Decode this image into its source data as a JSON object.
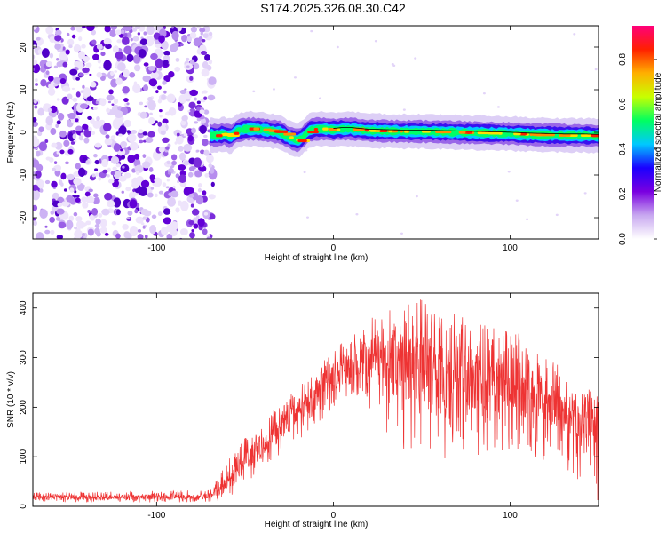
{
  "figure": {
    "title": "S174.2025.326.08.30.C42"
  },
  "chart_data": [
    {
      "type": "heatmap",
      "title": "S174.2025.326.08.30.C42",
      "xlabel": "Height of straight line (km)",
      "ylabel": "Frequency (Hz)",
      "xlim": [
        -170,
        150
      ],
      "ylim": [
        -25,
        25
      ],
      "xticks": [
        -100,
        0,
        100
      ],
      "yticks": [
        -20,
        -10,
        0,
        10,
        20
      ],
      "grid": false,
      "noise_region_x": [
        -170,
        -70
      ],
      "signal_start_x": -70,
      "signal_center_hz": [
        [
          -70,
          -0.6
        ],
        [
          -66,
          -0.8
        ],
        [
          -62,
          -0.4
        ],
        [
          -58,
          -1.0
        ],
        [
          -55,
          0.2
        ],
        [
          -50,
          0.8
        ],
        [
          -45,
          0.8
        ],
        [
          -40,
          0.6
        ],
        [
          -35,
          0.3
        ],
        [
          -30,
          0.0
        ],
        [
          -25,
          -1.2
        ],
        [
          -20,
          -2.0
        ],
        [
          -17,
          -1.0
        ],
        [
          -14,
          0.4
        ],
        [
          -10,
          0.8
        ],
        [
          -5,
          0.8
        ],
        [
          0,
          0.6
        ],
        [
          5,
          0.8
        ],
        [
          10,
          0.8
        ],
        [
          15,
          0.6
        ],
        [
          20,
          0.4
        ],
        [
          30,
          0.3
        ],
        [
          40,
          0.2
        ],
        [
          50,
          0.2
        ],
        [
          60,
          0.1
        ],
        [
          70,
          0.0
        ],
        [
          80,
          -0.1
        ],
        [
          90,
          -0.2
        ],
        [
          100,
          -0.3
        ],
        [
          110,
          -0.5
        ],
        [
          120,
          -0.6
        ],
        [
          130,
          -0.7
        ],
        [
          140,
          -0.7
        ],
        [
          150,
          -0.8
        ]
      ],
      "colorbar": {
        "label": "Normalized spectral amplitude",
        "range": [
          0.0,
          0.95
        ],
        "ticks": [
          0.0,
          0.2,
          0.4,
          0.6,
          0.8
        ],
        "tick_labels": [
          "0.0",
          "0.2",
          "0.4",
          "0.6",
          "0.8"
        ],
        "colors": [
          "#ffffff",
          "#c8a8f0",
          "#7a00e0",
          "#1a00ff",
          "#00c8ff",
          "#00ff60",
          "#c8ff00",
          "#ffb000",
          "#ff2000",
          "#ff007a"
        ]
      }
    },
    {
      "type": "line",
      "xlabel": "Height of straight line (km)",
      "ylabel": "SNR (10 * v/v)",
      "xlim": [
        -170,
        150
      ],
      "ylim": [
        0,
        430
      ],
      "xticks": [
        -100,
        0,
        100
      ],
      "yticks": [
        0,
        100,
        200,
        300,
        400
      ],
      "grid": false,
      "series": [
        {
          "name": "SNR",
          "color": "#ee3333",
          "envelope_x": [
            -170,
            -130,
            -90,
            -70,
            -60,
            -50,
            -40,
            -30,
            -20,
            -10,
            0,
            10,
            20,
            30,
            40,
            50,
            60,
            70,
            80,
            90,
            100,
            110,
            120,
            130,
            140,
            150
          ],
          "envelope_low": [
            8,
            8,
            8,
            8,
            15,
            40,
            70,
            100,
            130,
            160,
            200,
            220,
            200,
            150,
            110,
            100,
            90,
            100,
            100,
            100,
            110,
            100,
            90,
            80,
            40,
            10
          ],
          "envelope_high": [
            28,
            30,
            32,
            32,
            90,
            140,
            175,
            205,
            240,
            280,
            320,
            340,
            380,
            400,
            420,
            420,
            400,
            395,
            390,
            380,
            360,
            340,
            300,
            280,
            260,
            230
          ],
          "envelope_mean": [
            18,
            18,
            19,
            20,
            45,
            90,
            125,
            155,
            190,
            225,
            265,
            280,
            300,
            290,
            280,
            275,
            265,
            260,
            255,
            250,
            245,
            230,
            210,
            195,
            185,
            175
          ]
        }
      ]
    }
  ]
}
